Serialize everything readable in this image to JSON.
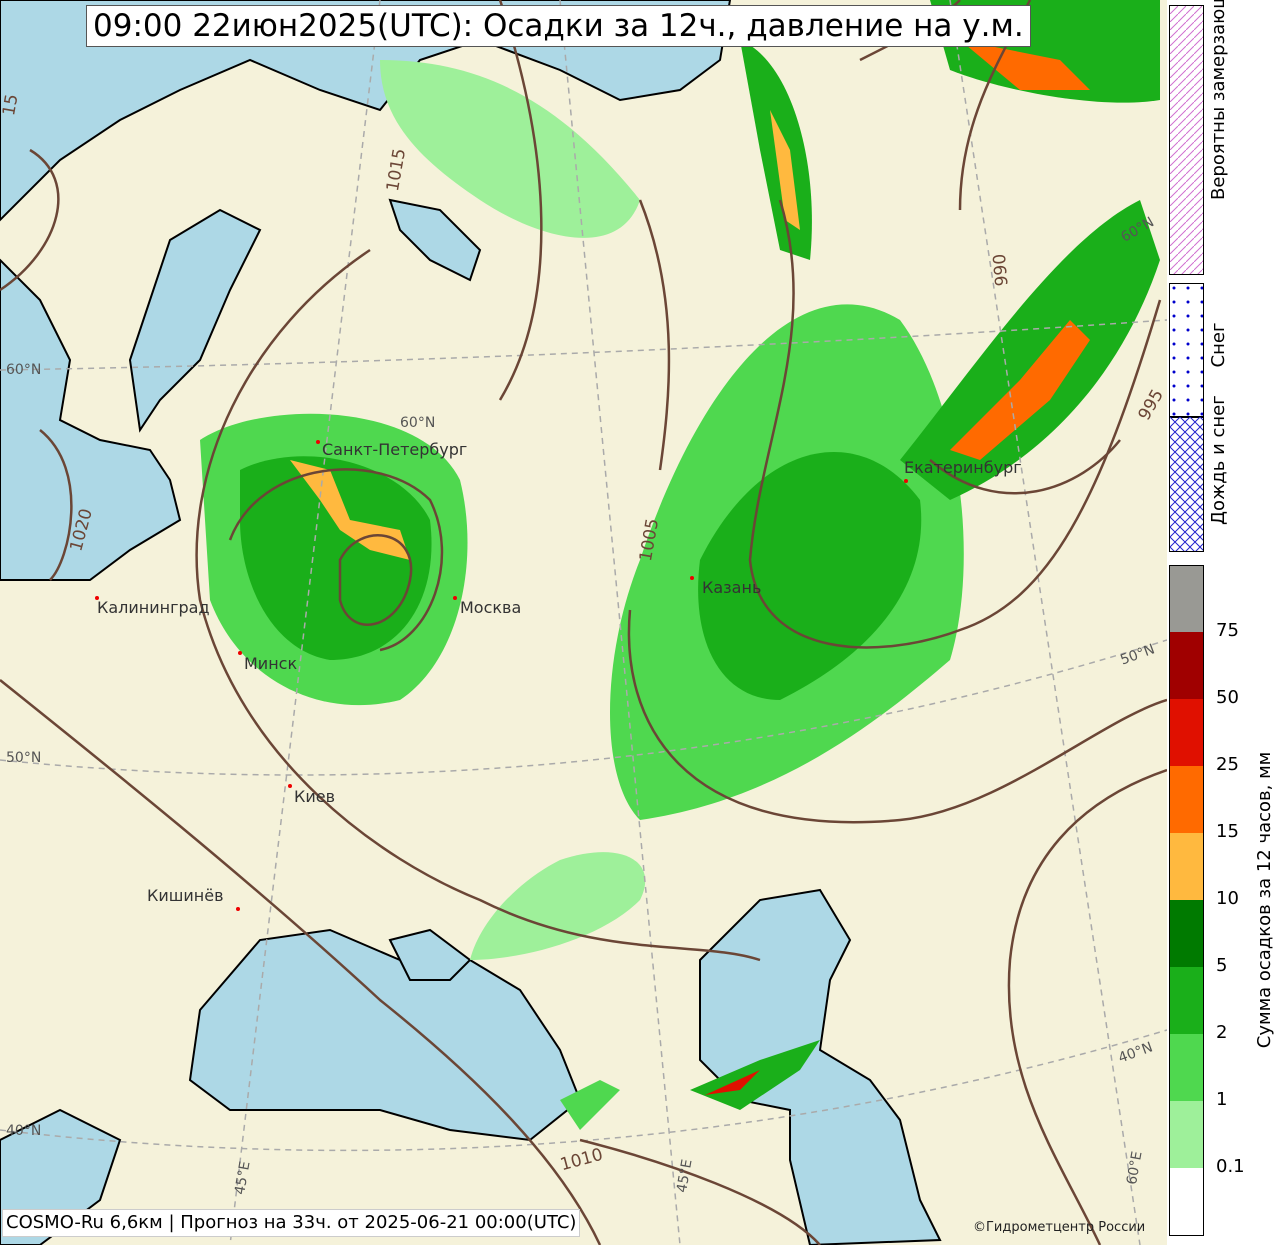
{
  "title": "09:00 22июн2025(UTC): Осадки за 12ч., давление на у.м.",
  "footer": "COSMO-Ru 6,6км | Прогноз на  33ч. от 2025-06-21 00:00(UTC)",
  "copyright": "©Гидрометцентр России",
  "cities": [
    {
      "name": "Санкт-Петербург"
    },
    {
      "name": "Москва"
    },
    {
      "name": "Калининград"
    },
    {
      "name": "Минск"
    },
    {
      "name": "Киев"
    },
    {
      "name": "Кишинёв"
    },
    {
      "name": "Казань"
    },
    {
      "name": "Екатеринбург"
    }
  ],
  "lat_labels": [
    "60°N",
    "60°N",
    "60°N",
    "50°N",
    "50°N",
    "40°N",
    "40°N",
    "45°E",
    "60°E",
    "45°E"
  ],
  "isobar_labels": [
    "1020",
    "1015",
    "1005",
    "990",
    "995",
    "1010",
    "15"
  ],
  "legend": {
    "freezing": "Вероятны замерзающие осадки",
    "snow": "Снег",
    "rain_snow": "Дождь и снег",
    "colorbar_label": "Сумма осадков за 12 часов, мм",
    "ticks": [
      "75",
      "50",
      "25",
      "15",
      "10",
      "5",
      "2",
      "1",
      "0.1"
    ],
    "colors": [
      "#999994",
      "#a00000",
      "#e01000",
      "#ff6a00",
      "#ffb93f",
      "#007a00",
      "#1aaf1a",
      "#4fd84f",
      "#9ef09a",
      "#ffffff"
    ]
  },
  "colors": {
    "land": "#f5f2da",
    "water": "#add8e6",
    "isobar": "#6b4636"
  }
}
